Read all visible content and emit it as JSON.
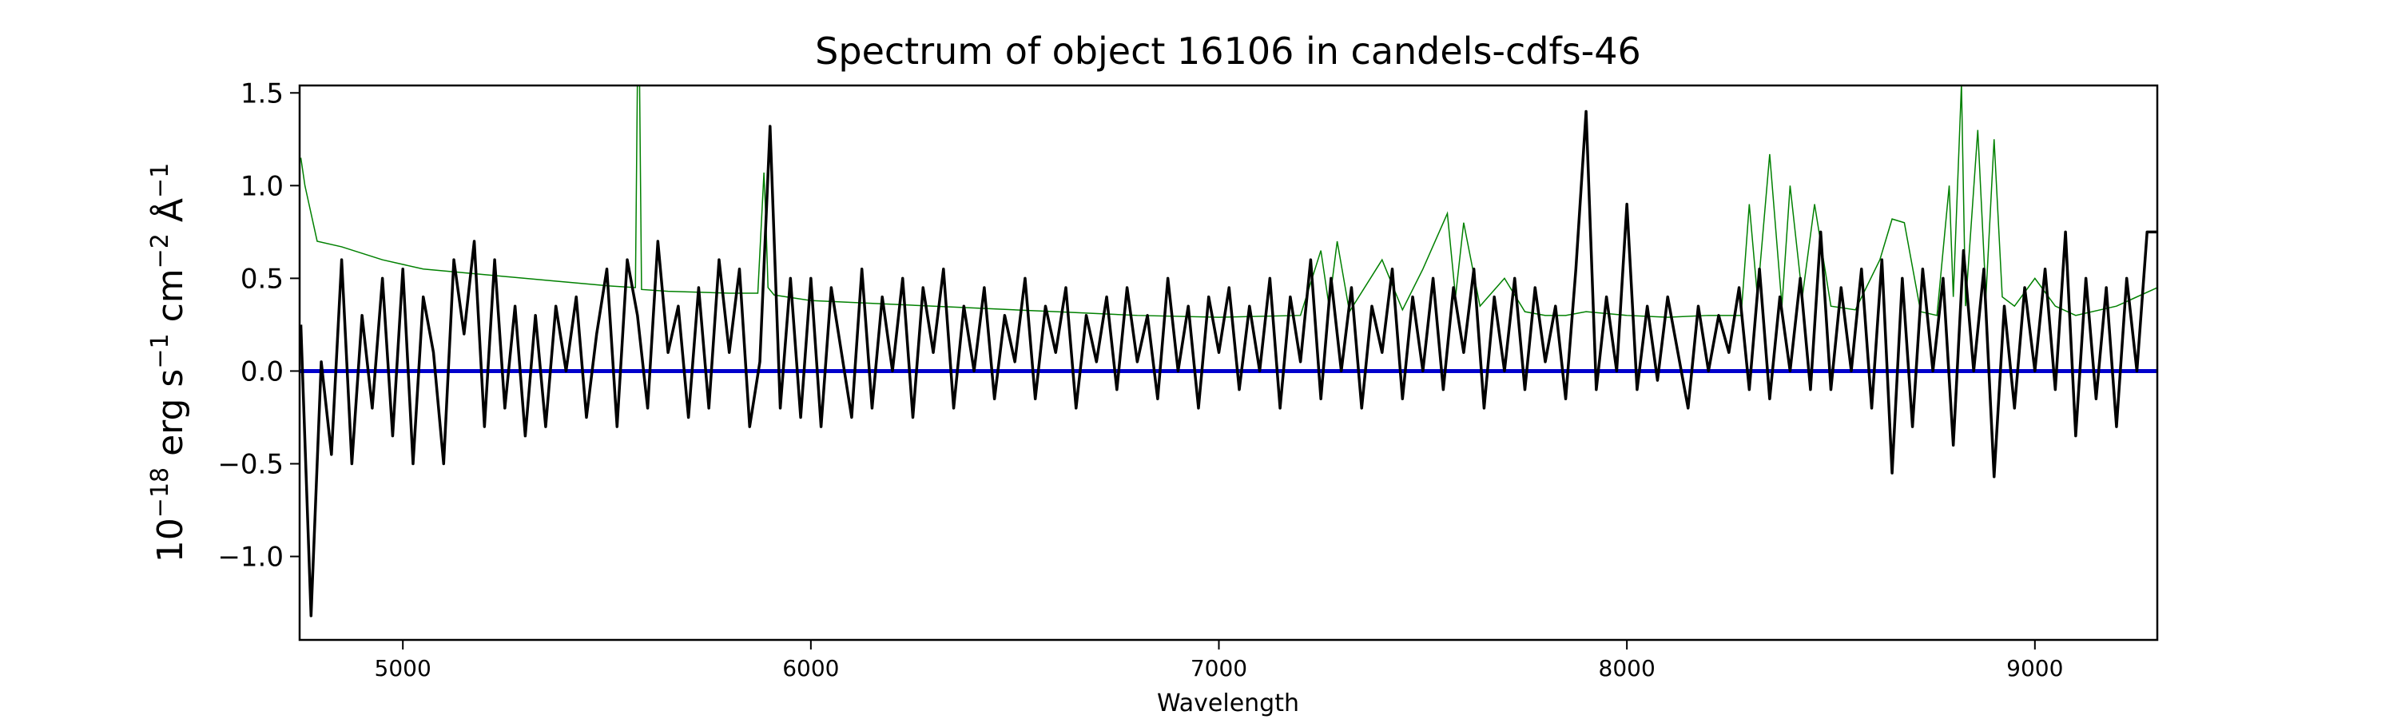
{
  "chart_data": {
    "type": "line",
    "title": "Spectrum of object 16106 in candels-cdfs-46",
    "xlabel": "Wavelength",
    "ylabel_parts": {
      "base": "10",
      "exp1": "−18",
      "erg": " erg s",
      "exp2": "−1",
      "cm": " cm",
      "exp3": "−2",
      "ang": " Å",
      "exp4": "−1"
    },
    "xlim": [
      4747,
      9300
    ],
    "ylim": [
      -1.45,
      1.54
    ],
    "xticks": [
      5000,
      6000,
      7000,
      8000,
      9000
    ],
    "xtick_labels": [
      "5000",
      "6000",
      "7000",
      "8000",
      "9000"
    ],
    "yticks": [
      -1.0,
      -0.5,
      0.0,
      0.5,
      1.0,
      1.5
    ],
    "ytick_labels": [
      "−1.0",
      "−0.5",
      "0.0",
      "0.5",
      "1.0",
      "1.5"
    ],
    "grid": false,
    "colors": {
      "flux": "#000000",
      "error": "#008000",
      "zero": "#0000cc"
    },
    "series": [
      {
        "role": "flux",
        "x_start": 4750,
        "x_step": 25,
        "y": [
          0.25,
          -1.32,
          0.05,
          -0.45,
          0.6,
          -0.5,
          0.3,
          -0.2,
          0.5,
          -0.35,
          0.55,
          -0.5,
          0.4,
          0.1,
          -0.5,
          0.6,
          0.2,
          0.7,
          -0.3,
          0.6,
          -0.2,
          0.35,
          -0.35,
          0.3,
          -0.3,
          0.35,
          0.0,
          0.4,
          -0.25,
          0.2,
          0.55,
          -0.3,
          0.6,
          0.3,
          -0.2,
          0.7,
          0.1,
          0.35,
          -0.25,
          0.45,
          -0.2,
          0.6,
          0.1,
          0.55,
          -0.3,
          0.05,
          1.32,
          -0.2,
          0.5,
          -0.25,
          0.5,
          -0.3,
          0.45,
          0.1,
          -0.25,
          0.55,
          -0.2,
          0.4,
          0.0,
          0.5,
          -0.25,
          0.45,
          0.1,
          0.55,
          -0.2,
          0.35,
          0.0,
          0.45,
          -0.15,
          0.3,
          0.05,
          0.5,
          -0.15,
          0.35,
          0.1,
          0.45,
          -0.2,
          0.3,
          0.05,
          0.4,
          -0.1,
          0.45,
          0.05,
          0.3,
          -0.15,
          0.5,
          0.0,
          0.35,
          -0.2,
          0.4,
          0.1,
          0.45,
          -0.1,
          0.35,
          0.0,
          0.5,
          -0.2,
          0.4,
          0.05,
          0.6,
          -0.15,
          0.5,
          0.0,
          0.45,
          -0.2,
          0.35,
          0.1,
          0.55,
          -0.15,
          0.4,
          0.0,
          0.5,
          -0.1,
          0.45,
          0.1,
          0.55,
          -0.2,
          0.4,
          0.0,
          0.5,
          -0.1,
          0.45,
          0.05,
          0.35,
          -0.15,
          0.55,
          1.4,
          -0.1,
          0.4,
          0.0,
          0.9,
          -0.1,
          0.35,
          -0.05,
          0.4,
          0.1,
          -0.2,
          0.35,
          0.0,
          0.3,
          0.1,
          0.45,
          -0.1,
          0.55,
          -0.15,
          0.4,
          0.0,
          0.5,
          -0.1,
          0.75,
          -0.1,
          0.45,
          0.0,
          0.55,
          -0.2,
          0.6,
          -0.55,
          0.5,
          -0.3,
          0.55,
          0.0,
          0.5,
          -0.4,
          0.65,
          0.0,
          0.55,
          -0.57,
          0.35,
          -0.2,
          0.45,
          0.0,
          0.55,
          -0.1,
          0.75,
          -0.35,
          0.5,
          -0.15,
          0.45,
          -0.3,
          0.5,
          0.0,
          0.75,
          0.75
        ]
      },
      {
        "role": "error",
        "x": [
          4750,
          4760,
          4790,
          4850,
          4950,
          5050,
          5200,
          5350,
          5500,
          5570,
          5575,
          5580,
          5585,
          5650,
          5800,
          5870,
          5885,
          5890,
          5895,
          5910,
          6000,
          6200,
          6400,
          6600,
          6800,
          7000,
          7200,
          7250,
          7270,
          7290,
          7320,
          7400,
          7450,
          7500,
          7560,
          7580,
          7600,
          7640,
          7700,
          7750,
          7800,
          7850,
          7900,
          8000,
          8100,
          8200,
          8280,
          8300,
          8320,
          8350,
          8380,
          8400,
          8430,
          8460,
          8500,
          8560,
          8620,
          8650,
          8680,
          8720,
          8760,
          8790,
          8800,
          8820,
          8830,
          8860,
          8880,
          8900,
          8920,
          8950,
          9000,
          9050,
          9100,
          9200,
          9300
        ],
        "y": [
          1.15,
          1.0,
          0.7,
          0.67,
          0.6,
          0.55,
          0.52,
          0.49,
          0.46,
          0.45,
          1.6,
          1.6,
          0.44,
          0.43,
          0.42,
          0.42,
          1.07,
          0.8,
          0.45,
          0.41,
          0.38,
          0.36,
          0.34,
          0.32,
          0.3,
          0.29,
          0.3,
          0.65,
          0.35,
          0.7,
          0.32,
          0.6,
          0.33,
          0.55,
          0.85,
          0.4,
          0.8,
          0.35,
          0.5,
          0.32,
          0.3,
          0.3,
          0.32,
          0.3,
          0.29,
          0.3,
          0.3,
          0.9,
          0.4,
          1.17,
          0.35,
          1.0,
          0.4,
          0.9,
          0.35,
          0.33,
          0.6,
          0.82,
          0.8,
          0.32,
          0.3,
          1.0,
          0.4,
          1.55,
          0.35,
          1.3,
          0.4,
          1.25,
          0.4,
          0.35,
          0.5,
          0.35,
          0.3,
          0.35,
          0.45
        ]
      },
      {
        "role": "zero",
        "y": 0.0
      }
    ]
  }
}
